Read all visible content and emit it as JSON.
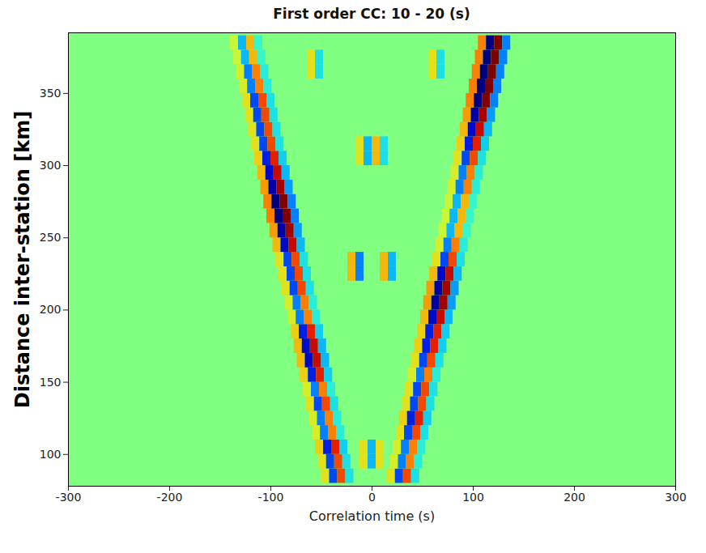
{
  "chart_data": {
    "type": "heatmap",
    "title": "First order CC: 10 - 20 (s)",
    "x_label": "Correlation time (s)",
    "y_label": "Distance inter-station [km]",
    "xlim": [
      -300,
      300
    ],
    "xticks": [
      -300,
      -200,
      -100,
      0,
      100,
      200,
      300
    ],
    "ylim": [
      78,
      392
    ],
    "yticks": [
      100,
      150,
      200,
      250,
      300,
      350
    ],
    "zlim": [
      -1,
      1
    ],
    "traces": [
      {
        "distance": 85,
        "times": [
          -46,
          -38,
          -30,
          -22,
          19,
          27,
          35,
          43
        ],
        "values": [
          0.3,
          -0.6,
          0.6,
          -0.3,
          0.3,
          -0.6,
          0.6,
          -0.3
        ]
      },
      {
        "distance": 95,
        "times": [
          -49,
          -41,
          -33,
          -25,
          22,
          30,
          38,
          46,
          -8,
          0,
          8
        ],
        "values": [
          0.3,
          -0.6,
          0.6,
          -0.3,
          0.25,
          -0.5,
          0.5,
          -0.25,
          0.3,
          -0.4,
          0.3
        ]
      },
      {
        "distance": 105,
        "times": [
          -52,
          -44,
          -36,
          -28,
          25,
          33,
          41,
          49,
          -8,
          0,
          8
        ],
        "values": [
          0.35,
          -0.7,
          0.7,
          -0.35,
          0.25,
          -0.5,
          0.5,
          -0.25,
          0.3,
          -0.4,
          0.3
        ]
      },
      {
        "distance": 115,
        "times": [
          -55,
          -47,
          -39,
          -31,
          28,
          36,
          44,
          52
        ],
        "values": [
          0.25,
          -0.5,
          0.5,
          -0.25,
          0.3,
          -0.6,
          0.6,
          -0.3
        ]
      },
      {
        "distance": 125,
        "times": [
          -58,
          -50,
          -42,
          -34,
          31,
          39,
          47,
          55
        ],
        "values": [
          0.25,
          -0.5,
          0.5,
          -0.25,
          0.35,
          -0.7,
          0.7,
          -0.35
        ]
      },
      {
        "distance": 135,
        "times": [
          -61,
          -53,
          -45,
          -37,
          34,
          42,
          50,
          58
        ],
        "values": [
          0.3,
          -0.6,
          0.6,
          -0.3,
          0.3,
          -0.6,
          0.6,
          -0.3
        ]
      },
      {
        "distance": 145,
        "times": [
          -64,
          -56,
          -48,
          -40,
          37,
          45,
          53,
          61
        ],
        "values": [
          0.25,
          -0.5,
          0.5,
          -0.25,
          0.3,
          -0.6,
          0.6,
          -0.3
        ]
      },
      {
        "distance": 155,
        "times": [
          -67,
          -59,
          -51,
          -43,
          40,
          48,
          56,
          64
        ],
        "values": [
          0.35,
          -0.7,
          0.7,
          -0.35,
          0.25,
          -0.5,
          0.5,
          -0.25
        ]
      },
      {
        "distance": 165,
        "times": [
          -70,
          -62,
          -54,
          -46,
          43,
          51,
          59,
          67
        ],
        "values": [
          0.4,
          -0.8,
          0.8,
          -0.4,
          0.3,
          -0.6,
          0.6,
          -0.3
        ]
      },
      {
        "distance": 175,
        "times": [
          -73,
          -65,
          -57,
          -49,
          46,
          54,
          62,
          70
        ],
        "values": [
          0.4,
          -0.8,
          0.8,
          -0.4,
          0.35,
          -0.7,
          0.7,
          -0.35
        ]
      },
      {
        "distance": 185,
        "times": [
          -76,
          -68,
          -60,
          -52,
          49,
          57,
          65,
          73
        ],
        "values": [
          0.35,
          -0.7,
          0.7,
          -0.35,
          0.35,
          -0.7,
          0.7,
          -0.35
        ]
      },
      {
        "distance": 195,
        "times": [
          -79,
          -71,
          -63,
          -55,
          52,
          60,
          68,
          76
        ],
        "values": [
          0.25,
          -0.5,
          0.5,
          -0.25,
          0.4,
          -0.8,
          0.8,
          -0.4
        ]
      },
      {
        "distance": 205,
        "times": [
          -82,
          -74,
          -66,
          -58,
          55,
          63,
          71,
          79
        ],
        "values": [
          0.25,
          -0.5,
          0.5,
          -0.25,
          0.45,
          -0.9,
          0.9,
          -0.45
        ]
      },
      {
        "distance": 215,
        "times": [
          -85,
          -77,
          -69,
          -61,
          58,
          66,
          74,
          82
        ],
        "values": [
          0.3,
          -0.6,
          0.6,
          -0.3,
          0.45,
          -0.9,
          0.9,
          -0.45
        ]
      },
      {
        "distance": 225,
        "times": [
          -88,
          -80,
          -72,
          -64,
          61,
          69,
          77,
          85,
          -20,
          -12,
          12,
          20
        ],
        "values": [
          0.3,
          -0.6,
          0.6,
          -0.3,
          0.4,
          -0.8,
          0.8,
          -0.4,
          0.4,
          -0.5,
          0.4,
          -0.4
        ]
      },
      {
        "distance": 235,
        "times": [
          -91,
          -83,
          -75,
          -67,
          64,
          72,
          80,
          88,
          -20,
          -12,
          12,
          20
        ],
        "values": [
          0.3,
          -0.6,
          0.6,
          -0.3,
          0.3,
          -0.6,
          0.6,
          -0.3,
          0.4,
          -0.5,
          0.4,
          -0.4
        ]
      },
      {
        "distance": 245,
        "times": [
          -94,
          -86,
          -78,
          -70,
          67,
          75,
          83,
          91
        ],
        "values": [
          0.4,
          -0.8,
          0.8,
          -0.4,
          0.25,
          -0.5,
          0.5,
          -0.25
        ]
      },
      {
        "distance": 255,
        "times": [
          -97,
          -89,
          -81,
          -73,
          70,
          78,
          86,
          94
        ],
        "values": [
          0.45,
          -0.9,
          0.9,
          -0.45,
          0.2,
          -0.4,
          0.4,
          -0.2
        ]
      },
      {
        "distance": 265,
        "times": [
          -100,
          -92,
          -84,
          -76,
          73,
          81,
          89,
          97
        ],
        "values": [
          0.5,
          -1,
          1,
          -0.5,
          0.2,
          -0.4,
          0.4,
          -0.2
        ]
      },
      {
        "distance": 275,
        "times": [
          -103,
          -95,
          -87,
          -79,
          76,
          84,
          92,
          100
        ],
        "values": [
          0.5,
          -1,
          1,
          -0.5,
          0.2,
          -0.4,
          0.4,
          -0.2
        ]
      },
      {
        "distance": 285,
        "times": [
          -106,
          -98,
          -90,
          -82,
          79,
          87,
          95,
          103
        ],
        "values": [
          0.45,
          -0.9,
          0.9,
          -0.45,
          0.25,
          -0.5,
          0.5,
          -0.25
        ]
      },
      {
        "distance": 295,
        "times": [
          -109,
          -101,
          -93,
          -85,
          82,
          90,
          98,
          106
        ],
        "values": [
          0.4,
          -0.8,
          0.8,
          -0.4,
          0.25,
          -0.5,
          0.5,
          -0.25
        ]
      },
      {
        "distance": 305,
        "times": [
          -112,
          -104,
          -96,
          -88,
          85,
          93,
          101,
          109,
          -12,
          -4,
          4,
          12
        ],
        "values": [
          0.35,
          -0.7,
          0.7,
          -0.35,
          0.3,
          -0.6,
          0.6,
          -0.3,
          0.3,
          -0.4,
          0.4,
          -0.3
        ]
      },
      {
        "distance": 315,
        "times": [
          -115,
          -107,
          -99,
          -91,
          88,
          96,
          104,
          112,
          -12,
          -4,
          4,
          12
        ],
        "values": [
          0.3,
          -0.6,
          0.6,
          -0.3,
          0.35,
          -0.7,
          0.7,
          -0.35,
          0.3,
          -0.4,
          0.4,
          -0.3
        ]
      },
      {
        "distance": 325,
        "times": [
          -118,
          -110,
          -102,
          -94,
          91,
          99,
          107,
          115
        ],
        "values": [
          0.3,
          -0.6,
          0.6,
          -0.3,
          0.4,
          -0.8,
          0.8,
          -0.4
        ]
      },
      {
        "distance": 335,
        "times": [
          -121,
          -113,
          -105,
          -97,
          94,
          102,
          110,
          118
        ],
        "values": [
          0.3,
          -0.6,
          0.6,
          -0.3,
          0.45,
          -0.9,
          0.9,
          -0.45
        ]
      },
      {
        "distance": 345,
        "times": [
          -124,
          -116,
          -108,
          -100,
          97,
          105,
          113,
          121
        ],
        "values": [
          0.3,
          -0.6,
          0.6,
          -0.3,
          0.5,
          -1,
          1,
          -0.5
        ]
      },
      {
        "distance": 355,
        "times": [
          -127,
          -119,
          -111,
          -103,
          100,
          108,
          116,
          124
        ],
        "values": [
          0.25,
          -0.5,
          0.5,
          -0.25,
          0.5,
          -1,
          1,
          -0.5
        ]
      },
      {
        "distance": 365,
        "times": [
          -130,
          -122,
          -114,
          -106,
          103,
          111,
          119,
          127,
          -60,
          -52,
          60,
          68
        ],
        "values": [
          0.25,
          -0.5,
          0.5,
          -0.25,
          0.5,
          -1,
          1,
          -0.5,
          0.3,
          -0.3,
          0.3,
          -0.3
        ]
      },
      {
        "distance": 375,
        "times": [
          -133,
          -125,
          -117,
          -109,
          106,
          114,
          122,
          130,
          -60,
          -52,
          60,
          68
        ],
        "values": [
          0.2,
          -0.4,
          0.4,
          -0.2,
          0.5,
          -1,
          1,
          -0.5,
          0.3,
          -0.3,
          0.3,
          -0.3
        ]
      },
      {
        "distance": 385,
        "times": [
          -136,
          -128,
          -120,
          -112,
          109,
          117,
          125,
          133
        ],
        "values": [
          0.2,
          -0.4,
          0.4,
          -0.2,
          0.5,
          -1,
          1,
          -0.5
        ]
      }
    ]
  }
}
